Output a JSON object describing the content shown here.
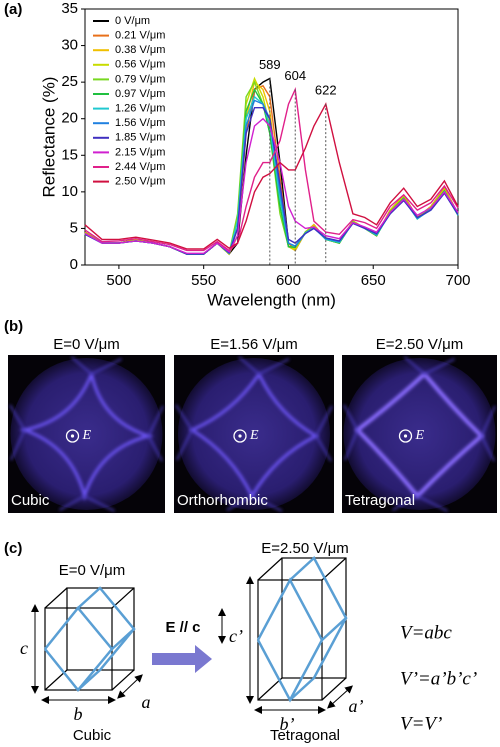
{
  "chart_data": {
    "type": "line",
    "xlabel": "Wavelength (nm)",
    "ylabel": "Reflectance (%)",
    "xlim": [
      480,
      700
    ],
    "xticks": [
      500,
      550,
      600,
      650,
      700
    ],
    "ylim": [
      0,
      35
    ],
    "yticks": [
      0,
      5,
      10,
      15,
      20,
      25,
      30,
      35
    ],
    "legend": "upper left",
    "x": [
      480,
      490,
      500,
      510,
      520,
      530,
      540,
      550,
      558,
      565,
      570,
      575,
      580,
      585,
      589,
      595,
      600,
      604,
      610,
      615,
      622,
      630,
      638,
      645,
      652,
      660,
      668,
      676,
      684,
      692,
      700
    ],
    "series": [
      {
        "name": "0 V/μm",
        "color": "#000000",
        "values": [
          4.5,
          3,
          3,
          3.5,
          3,
          2.5,
          1.5,
          1.5,
          3,
          1.5,
          3,
          15,
          24,
          25,
          25.5,
          14,
          3,
          2,
          4.5,
          5.5,
          3.5,
          3,
          6,
          5,
          4,
          7.5,
          9.5,
          6.5,
          8,
          10.5,
          7
        ]
      },
      {
        "name": "0.21 V/μm",
        "color": "#e8701a",
        "values": [
          4.5,
          3,
          3,
          3.5,
          3,
          2.5,
          1.5,
          1.5,
          3,
          1.5,
          4,
          18,
          24,
          24.5,
          23,
          12,
          3,
          2,
          4.5,
          5.5,
          3.5,
          3,
          6,
          5,
          4,
          7.5,
          9.5,
          6.5,
          8,
          10.5,
          7
        ]
      },
      {
        "name": "0.38 V/μm",
        "color": "#f0c000",
        "values": [
          4.4,
          3,
          3,
          3.4,
          3,
          2.5,
          1.5,
          1.5,
          3,
          1.5,
          5,
          20,
          25,
          24,
          21,
          10,
          2.5,
          2,
          4.5,
          5.5,
          3.5,
          3,
          6,
          5,
          4,
          7.5,
          9.4,
          6.5,
          8,
          10.4,
          7
        ]
      },
      {
        "name": "0.56 V/μm",
        "color": "#c8dc00",
        "values": [
          4.4,
          3,
          3,
          3.4,
          3,
          2.5,
          1.5,
          1.5,
          3,
          1.5,
          6,
          22,
          25.5,
          23,
          19,
          8,
          2.5,
          2.2,
          4.5,
          5.3,
          3.5,
          3,
          6,
          5,
          4,
          7.4,
          9.3,
          6.4,
          7.9,
          10.3,
          7
        ]
      },
      {
        "name": "0.79 V/μm",
        "color": "#78d820",
        "values": [
          4.3,
          3,
          3,
          3.3,
          3,
          2.5,
          1.5,
          1.5,
          3,
          1.6,
          7,
          23,
          25,
          22,
          18,
          7,
          2.5,
          2.5,
          4.5,
          5.2,
          3.5,
          3,
          5.9,
          5,
          4,
          7.3,
          9.2,
          6.3,
          7.8,
          10.2,
          6.8
        ]
      },
      {
        "name": "0.97 V/μm",
        "color": "#20c040",
        "values": [
          4.3,
          3,
          3,
          3.3,
          3,
          2.5,
          1.5,
          1.5,
          3,
          1.6,
          6,
          21,
          24,
          22,
          18,
          8,
          2.5,
          2.4,
          4.4,
          5.2,
          3.5,
          3,
          5.8,
          5,
          4,
          7.2,
          9.1,
          6.3,
          7.7,
          10.1,
          6.8
        ]
      },
      {
        "name": "1.26 V/μm",
        "color": "#20c8d0",
        "values": [
          4.2,
          3,
          3,
          3.3,
          3,
          2.5,
          1.5,
          1.5,
          3,
          1.6,
          6,
          20,
          23,
          22,
          19,
          9,
          3,
          2.5,
          4.4,
          5.1,
          3.5,
          3.1,
          5.8,
          5,
          4.1,
          7.1,
          9,
          6.3,
          7.6,
          10,
          6.8
        ]
      },
      {
        "name": "1.56 V/μm",
        "color": "#2080e0",
        "values": [
          4.2,
          3,
          3,
          3.3,
          3,
          2.5,
          1.5,
          1.5,
          3,
          1.6,
          5,
          19,
          22.5,
          22,
          20,
          10,
          3,
          2.6,
          4.3,
          5,
          3.6,
          3.2,
          5.7,
          5,
          4.2,
          7,
          8.9,
          6.4,
          7.5,
          9.9,
          6.9
        ]
      },
      {
        "name": "1.85 V/μm",
        "color": "#4030c0",
        "values": [
          4.2,
          3,
          3,
          3.3,
          3,
          2.5,
          1.5,
          1.5,
          3,
          1.7,
          5,
          18,
          21.5,
          21.5,
          20,
          11,
          3.5,
          3,
          4.3,
          5,
          3.7,
          3.3,
          5.7,
          5,
          4.3,
          7,
          8.8,
          6.5,
          7.5,
          9.8,
          6.9
        ]
      },
      {
        "name": "2.15 V/μm",
        "color": "#d020d0",
        "values": [
          4.3,
          3,
          3,
          3.3,
          3,
          2.5,
          1.6,
          1.6,
          3,
          1.8,
          4,
          14,
          19,
          20,
          19,
          14,
          8,
          6,
          5,
          5.2,
          4,
          3.6,
          5.8,
          5.2,
          4.5,
          7.2,
          9,
          6.8,
          7.8,
          10,
          7.2
        ]
      },
      {
        "name": "2.44 V/μm",
        "color": "#e0208a",
        "values": [
          4.8,
          3.2,
          3.3,
          3.6,
          3.2,
          2.8,
          2,
          2,
          3.2,
          2,
          3,
          8,
          12,
          14,
          14,
          17,
          22,
          24,
          13,
          6,
          4.5,
          4.2,
          6.2,
          5.8,
          5,
          8,
          9.6,
          7.5,
          8.5,
          10.8,
          7.8
        ]
      },
      {
        "name": "2.50 V/μm",
        "color": "#d01040",
        "values": [
          5.5,
          3.5,
          3.5,
          3.8,
          3.4,
          3,
          2.2,
          2.2,
          3.5,
          2.3,
          3,
          6,
          10,
          12,
          12.5,
          14,
          13,
          13,
          16,
          19,
          22,
          14,
          7,
          6.5,
          5.5,
          8.5,
          10.5,
          8,
          9,
          11.5,
          8
        ]
      }
    ],
    "annotations": [
      {
        "x": 589,
        "y": 25.5
      },
      {
        "x": 604,
        "y": 24
      },
      {
        "x": 622,
        "y": 22
      }
    ]
  },
  "panel_labels": [
    "(a)",
    "(b)",
    "(c)"
  ],
  "images": [
    {
      "title": "E=0 V/μm",
      "phase": "Cubic",
      "marker": "E"
    },
    {
      "title": "E=1.56 V/μm",
      "phase": "Orthorhombic",
      "marker": "E"
    },
    {
      "title": "E=2.50 V/μm",
      "phase": "Tetragonal",
      "marker": "E"
    }
  ],
  "diagram": {
    "left": {
      "title": "E=0 V/μm",
      "caption": "Cubic",
      "c": "c",
      "b": "b",
      "a": "a"
    },
    "right": {
      "title": "E=2.50 V/μm",
      "caption": "Tetragonal",
      "c": "c’",
      "b": "b’",
      "a": "a’"
    },
    "arrow_label": "E // c",
    "equations": [
      "V=abc",
      "V’=a’b’c’",
      "V=V’"
    ]
  }
}
